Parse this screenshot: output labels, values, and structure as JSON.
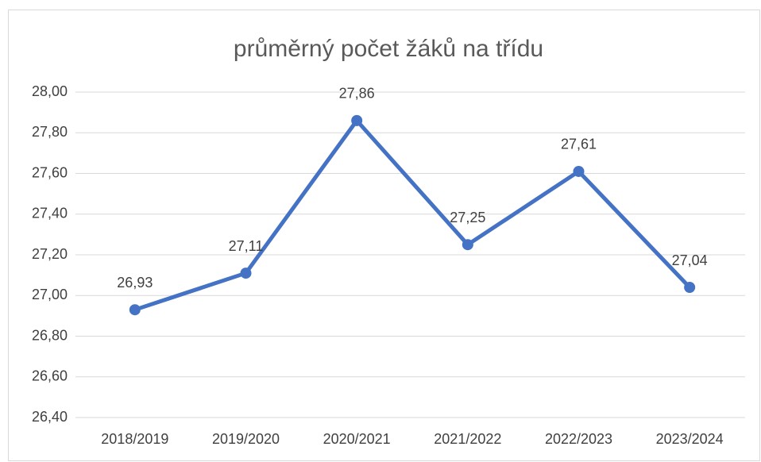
{
  "chart_data": {
    "type": "line",
    "title": "průměrný počet žáků na třídu",
    "categories": [
      "2018/2019",
      "2019/2020",
      "2020/2021",
      "2021/2022",
      "2022/2023",
      "2023/2024"
    ],
    "series": [
      {
        "name": "průměrný počet žáků na třídu",
        "color": "#4472c4",
        "values": [
          26.93,
          27.11,
          27.86,
          27.25,
          27.61,
          27.04
        ],
        "value_labels": [
          "26,93",
          "27,11",
          "27,86",
          "27,25",
          "27,61",
          "27,04"
        ]
      }
    ],
    "ylim": [
      26.4,
      28.0
    ],
    "yticks": [
      {
        "value": 26.4,
        "label": "26,40"
      },
      {
        "value": 26.6,
        "label": "26,60"
      },
      {
        "value": 26.8,
        "label": "26,80"
      },
      {
        "value": 27.0,
        "label": "27,00"
      },
      {
        "value": 27.2,
        "label": "27,20"
      },
      {
        "value": 27.4,
        "label": "27,40"
      },
      {
        "value": 27.6,
        "label": "27,60"
      },
      {
        "value": 27.8,
        "label": "27,80"
      },
      {
        "value": 28.0,
        "label": "28,00"
      }
    ],
    "grid": true,
    "legend": false
  }
}
